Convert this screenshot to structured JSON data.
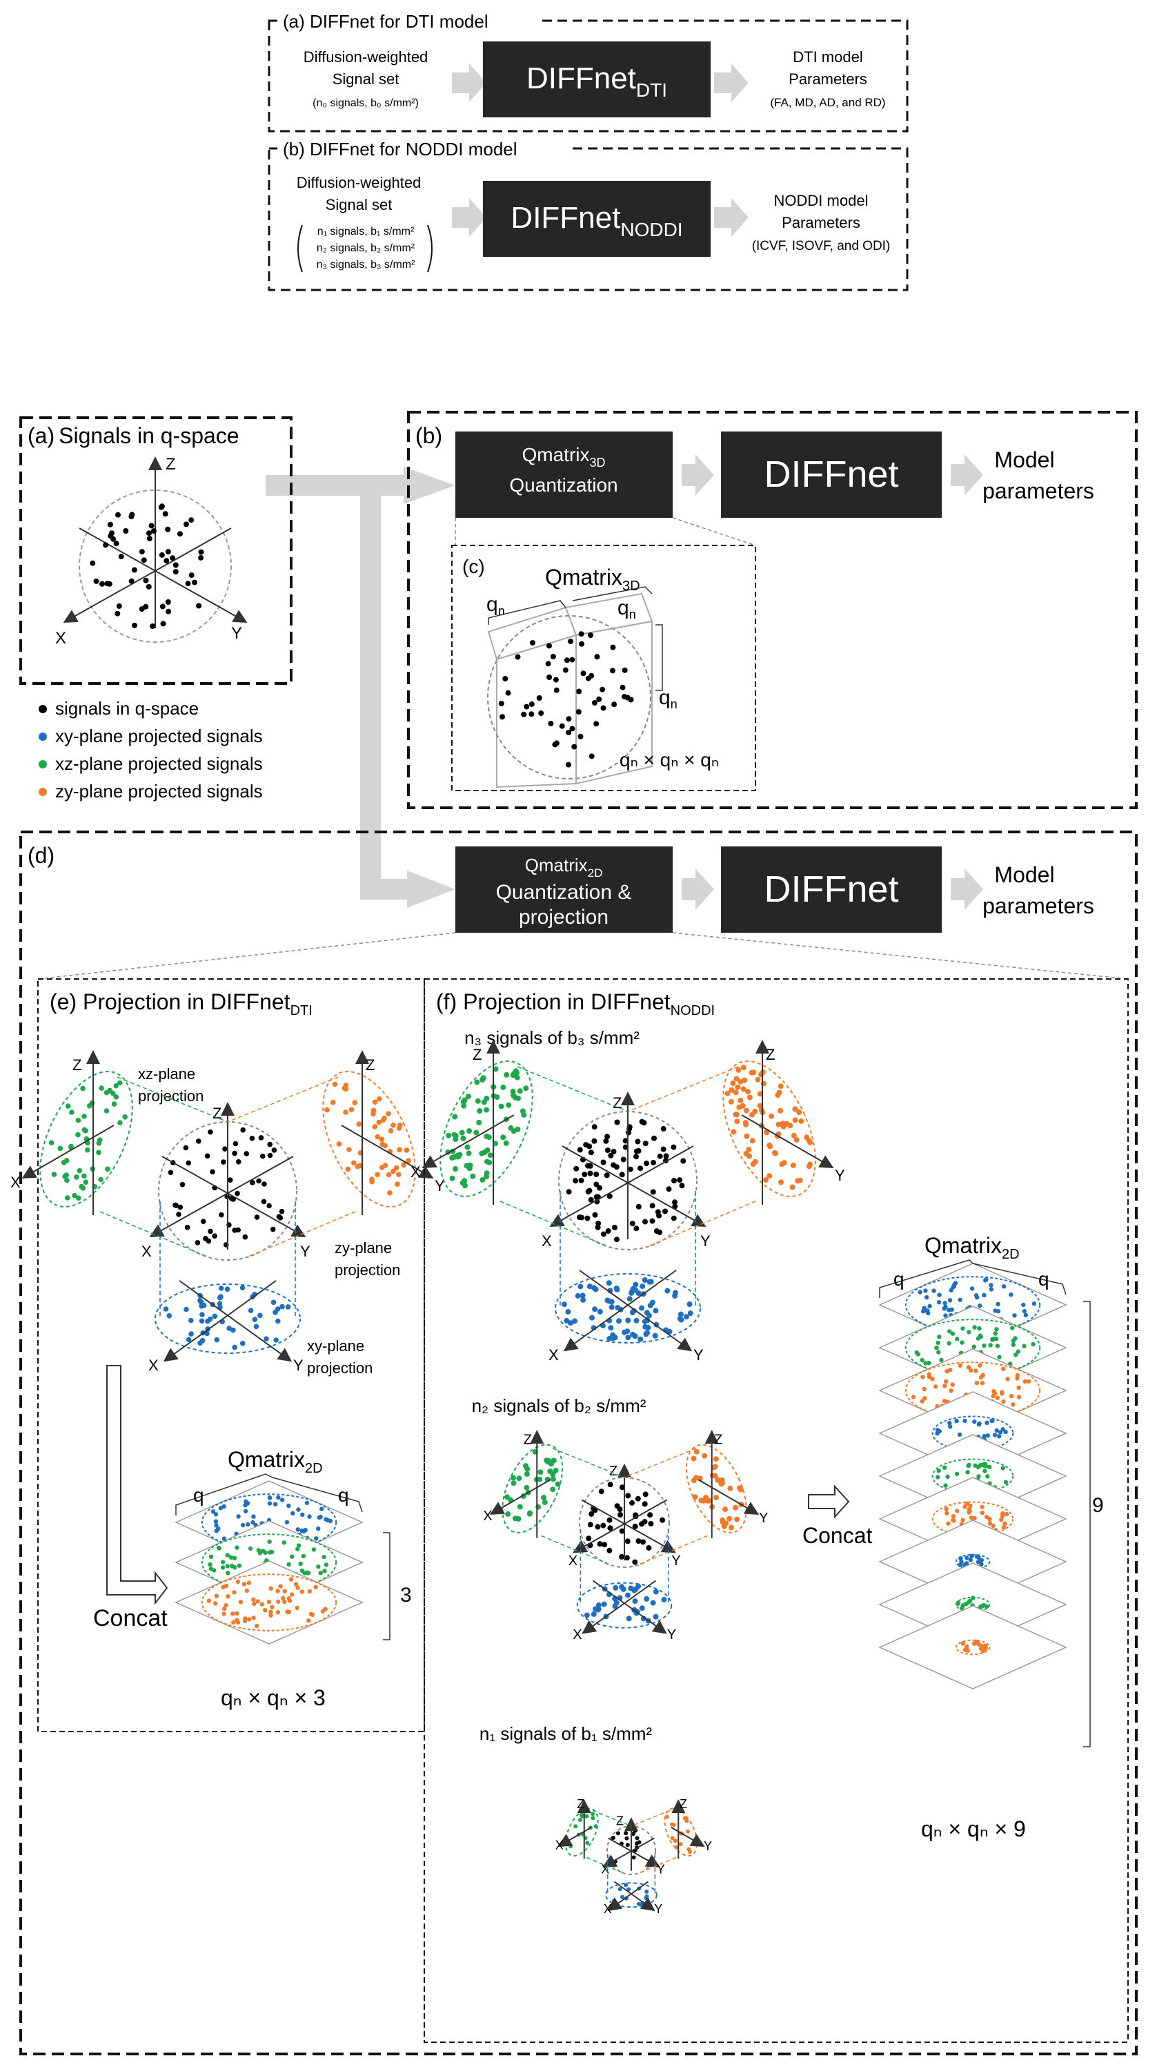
{
  "top": {
    "panel_a": {
      "title": "(a) DIFFnet for DTI model",
      "input": {
        "line1": "Diffusion-weighted",
        "line2": "Signal set",
        "line3": "(n₀ signals, b₀ s/mm²)"
      },
      "net": {
        "main": "DIFFnet",
        "sub": "DTI"
      },
      "output": {
        "line1": "DTI model",
        "line2": "Parameters",
        "line3": "(FA, MD, AD, and RD)"
      }
    },
    "panel_b": {
      "title": "(b) DIFFnet for NODDI model",
      "input": {
        "line1": "Diffusion-weighted",
        "line2": "Signal set",
        "items": [
          "n₁ signals, b₁ s/mm²",
          "n₂ signals, b₂ s/mm²",
          "n₃ signals, b₃ s/mm²"
        ]
      },
      "net": {
        "main": "DIFFnet",
        "sub": "NODDI"
      },
      "output": {
        "line1": "NODDI model",
        "line2": "Parameters",
        "line3": "(ICVF, ISOVF, and ODI)"
      }
    }
  },
  "main": {
    "a": {
      "label": "(a)",
      "title": "Signals in q-space",
      "axes": {
        "z": "Z",
        "x": "X",
        "y": "Y"
      }
    },
    "legend": [
      {
        "label": "signals in q-space",
        "color": "#000000"
      },
      {
        "label": "xy-plane projected signals",
        "color": "#1f6fc1"
      },
      {
        "label": "xz-plane projected signals",
        "color": "#1fa84a"
      },
      {
        "label": "zy-plane projected signals",
        "color": "#f07a2a"
      }
    ],
    "b": {
      "label": "(b)",
      "quant_main": "Qmatrix",
      "quant_sub": "3D",
      "quant_line2": "Quantization",
      "net": "DIFFnet",
      "out1": "Model",
      "out2": "parameters"
    },
    "c": {
      "label": "(c)",
      "title_main": "Qmatrix",
      "title_sub": "3D",
      "qn": "q",
      "qn_sub": "n",
      "dims": "qₙ × qₙ × qₙ"
    },
    "d": {
      "label": "(d)",
      "quant_main": "Qmatrix",
      "quant_sub": "2D",
      "quant_line2": "Quantization &",
      "quant_line3": "projection",
      "net": "DIFFnet",
      "out1": "Model",
      "out2": "parameters"
    },
    "e": {
      "title_main": "(e) Projection in DIFFnet",
      "title_sub": "DTI",
      "xz_label1": "xz-plane",
      "xz_label2": "projection",
      "zy_label1": "zy-plane",
      "zy_label2": "projection",
      "xy_label1": "xy-plane",
      "xy_label2": "projection",
      "concat": "Concat",
      "qm_main": "Qmatrix",
      "qm_sub": "2D",
      "stack_count": "3",
      "dims": "qₙ × qₙ × 3"
    },
    "f": {
      "title_main": "(f) Projection in DIFFnet",
      "title_sub": "NODDI",
      "shell3": "n₃ signals of b₃ s/mm²",
      "shell2": "n₂ signals of b₂ s/mm²",
      "shell1": "n₁ signals of b₁ s/mm²",
      "concat": "Concat",
      "qm_main": "Qmatrix",
      "qm_sub": "2D",
      "stack_count": "9",
      "dims": "qₙ × qₙ × 9"
    }
  },
  "colors": {
    "box": "#262626",
    "arrow": "#d4d4d4",
    "black_dot": "#000000",
    "blue": "#1f6fc1",
    "green": "#1fa84a",
    "orange": "#f07a2a"
  }
}
